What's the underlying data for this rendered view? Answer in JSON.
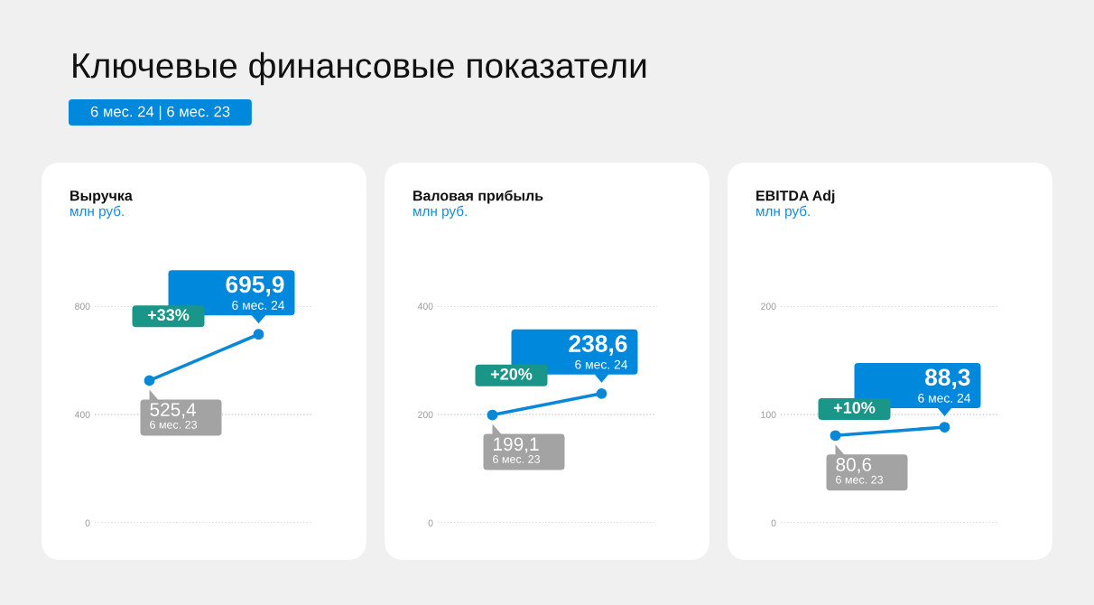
{
  "chart_data": [
    {
      "type": "other",
      "title": "Ключевые финансовые показатели",
      "subtitle": "6 мес. 24 | 6 мес. 23"
    },
    {
      "type": "line",
      "title": "Выручка",
      "subtitle": "млн руб.",
      "categories": [
        "6 мес. 23",
        "6 мес. 24"
      ],
      "series": [
        {
          "color": "#0a88d8",
          "values": [
            525.4,
            695.9
          ],
          "value_labels": [
            "525,4",
            "695,9"
          ]
        }
      ],
      "ylim": [
        0,
        800
      ],
      "yticks": [
        0,
        400,
        800
      ],
      "grid": "y",
      "marker": "circle",
      "line_style": "solid",
      "tick_labels": "y",
      "annotations": [
        "+33%"
      ]
    },
    {
      "type": "line",
      "title": "Валовая прибыль",
      "subtitle": "млн руб.",
      "categories": [
        "6 мес. 23",
        "6 мес. 24"
      ],
      "series": [
        {
          "color": "#0a88d8",
          "values": [
            199.1,
            238.6
          ],
          "value_labels": [
            "199,1",
            "238,6"
          ]
        }
      ],
      "ylim": [
        0,
        400
      ],
      "yticks": [
        0,
        200,
        400
      ],
      "grid": "y",
      "marker": "circle",
      "line_style": "solid",
      "tick_labels": "y",
      "annotations": [
        "+20%"
      ]
    },
    {
      "type": "line",
      "title": "EBITDA Adj",
      "subtitle": "млн руб.",
      "categories": [
        "6 мес. 23",
        "6 мес. 24"
      ],
      "series": [
        {
          "color": "#0a88d8",
          "values": [
            80.6,
            88.3
          ],
          "value_labels": [
            "80,6",
            "88,3"
          ]
        }
      ],
      "ylim": [
        0,
        200
      ],
      "yticks": [
        0,
        100,
        200
      ],
      "grid": "y",
      "marker": "circle",
      "line_style": "solid",
      "tick_labels": "y",
      "annotations": [
        "+10%"
      ]
    }
  ]
}
